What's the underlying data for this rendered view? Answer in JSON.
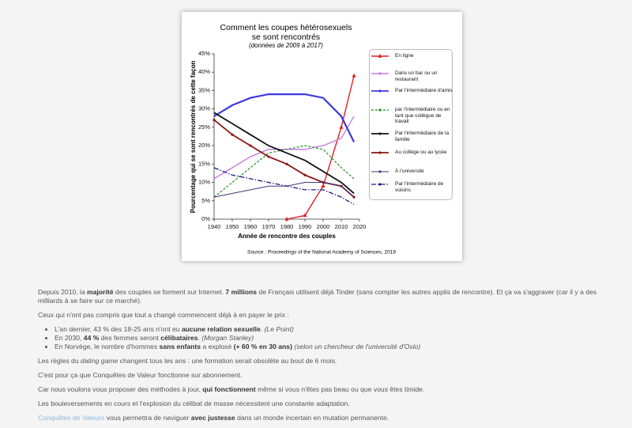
{
  "chart_data": {
    "type": "line",
    "title": [
      "Comment les coupes hétérosexuels",
      "se sont rencontrés"
    ],
    "subtitle": "(données de 2009 à 2017)",
    "y_label": "Pourcentage qui se sont rencontrés de cette façon",
    "x_label": "Année de rencontre des couples",
    "source": "Source : Proceedings of the National Academy of Sciences, 2019",
    "x": [
      1940,
      1950,
      1960,
      1970,
      1980,
      1990,
      2000,
      2010,
      2017
    ],
    "xlim": [
      1940,
      2020
    ],
    "xticks": [
      1940,
      1950,
      1960,
      1970,
      1980,
      1990,
      2000,
      2010,
      2020
    ],
    "ylim": [
      0,
      45
    ],
    "yticks": [
      {
        "value": 0,
        "label": "0%"
      },
      {
        "value": 5,
        "label": "5%"
      },
      {
        "value": 10,
        "label": "10%"
      },
      {
        "value": 15,
        "label": "15%"
      },
      {
        "value": 20,
        "label": "20%"
      },
      {
        "value": 25,
        "label": "25%"
      },
      {
        "value": 30,
        "label": "30%"
      },
      {
        "value": 35,
        "label": "35%"
      },
      {
        "value": 40,
        "label": "40%"
      },
      {
        "value": 45,
        "label": "45%"
      }
    ],
    "series": [
      {
        "name": "En ligne",
        "color": "#e02020",
        "values": [
          null,
          null,
          null,
          null,
          0,
          1,
          9,
          25,
          39
        ]
      },
      {
        "name": "Dans un bar ou un restaurant",
        "color": "#c77ee0",
        "values": [
          11,
          14,
          17,
          19,
          19,
          19,
          20,
          22,
          28
        ]
      },
      {
        "name": "Par l'intermédiaire d'amis",
        "color": "#3b3bdc",
        "values": [
          28,
          31,
          33,
          34,
          34,
          34,
          33,
          28,
          21
        ]
      },
      {
        "name": "par l'intermédiaire ou en tant que collègue de travail",
        "color": "#1f8f1f",
        "values": [
          6,
          10,
          14,
          18,
          19,
          20,
          19,
          14,
          11
        ]
      },
      {
        "name": "Par l'intermédiaire de la famille",
        "color": "#111111",
        "values": [
          29,
          26,
          23,
          20,
          18,
          16,
          13,
          10,
          7
        ]
      },
      {
        "name": "Au collège ou au lycée",
        "color": "#8b1515",
        "values": [
          27,
          23,
          20,
          17,
          15,
          12,
          10,
          9,
          6
        ]
      },
      {
        "name": "À l'université",
        "color": "#3a3a7a",
        "values": [
          6,
          7,
          8,
          9,
          9,
          10,
          10,
          9,
          6
        ]
      },
      {
        "name": "Par l'intermédiaire de voisins",
        "color": "#1c1c86",
        "values": [
          14,
          12,
          11,
          10,
          9,
          8,
          8,
          6,
          4
        ]
      }
    ]
  },
  "article": {
    "p0": [
      "Depuis 2010, la ",
      "majorité",
      " des couples se forment sur Internet. ",
      "7 millions",
      " de Français utilisent déjà Tinder (sans compter les autres applis de rencontre). Et ça va s'aggraver (car il y a des milliards à se faire sur ce marché)."
    ],
    "p1": "Ceux qui n'ont pas compris que tout a changé commencent déjà à en payer le prix :",
    "list": [
      [
        "L'an dernier, 43 % des 18-25 ans n'ont eu ",
        "aucune relation sexuelle",
        ".",
        "(Le Point)"
      ],
      [
        "En 2030, ",
        "44 %",
        " des femmes seront ",
        "célibataires",
        ".",
        "(Morgan Stanley)"
      ],
      [
        "En Norvège, le nombre d'hommes ",
        "sans enfants",
        " a explosé ",
        "(+ 60 % en 30 ans)",
        "(selon un chercheur de l'université d'Oslo)"
      ]
    ],
    "p2": [
      "Les règles du ",
      "dating game",
      " changent tous les ans : une formation serait obsolète au bout de 6 mois."
    ],
    "p3": "C'est pour ça que Conquêtes de Valeur fonctionne sur abonnement.",
    "p4": [
      "Car nous voulons vous proposer des méthodes à jour, ",
      "qui fonctionnent",
      " même si vous n'êtes pas beau ou que vous êtes timide."
    ],
    "p5": "Les bouleversements en cours et l'explosion du célibat de masse nécessitent une constante adaptation.",
    "p6": [
      "Conquêtes de Valeurs",
      " vous permettra de naviguer ",
      "avec justesse",
      " dans un monde incertain en mutation permanente."
    ]
  }
}
